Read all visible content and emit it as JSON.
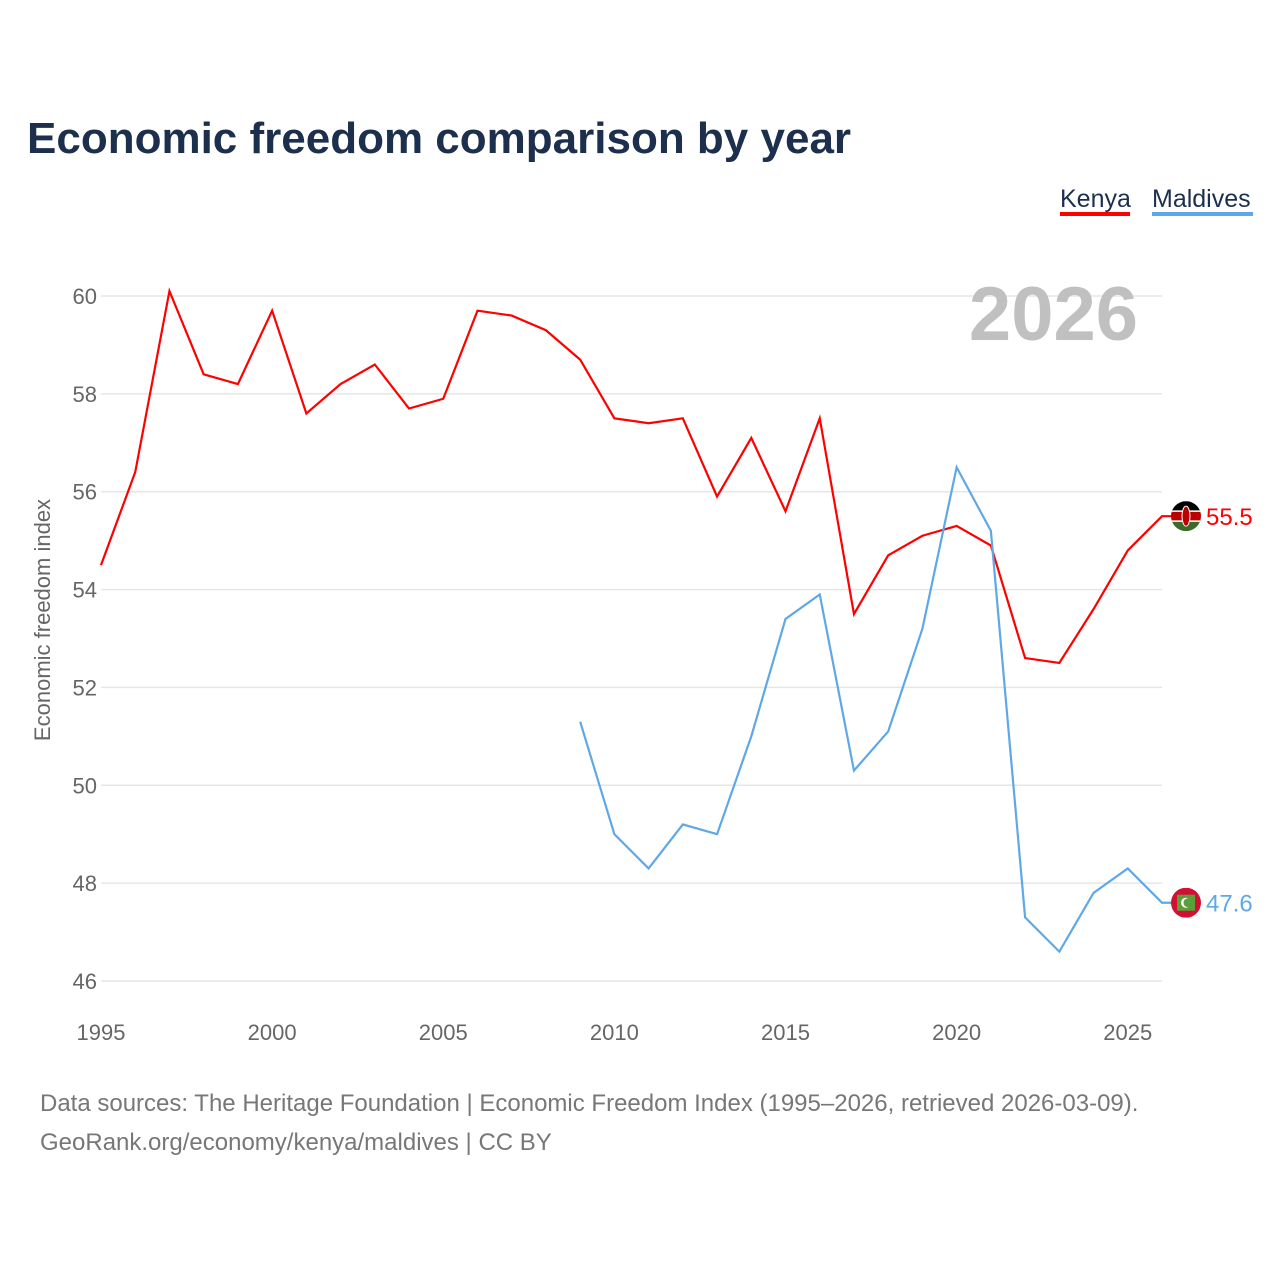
{
  "chart_data": {
    "type": "line",
    "title": "Economic freedom comparison by year",
    "ylabel": "Economic freedom index",
    "xlabel": "",
    "xlim": [
      1995,
      2026
    ],
    "ylim": [
      46,
      60
    ],
    "xticks": [
      "1995",
      "2000",
      "2005",
      "2010",
      "2015",
      "2020",
      "2025"
    ],
    "yticks": [
      "46",
      "48",
      "50",
      "52",
      "54",
      "56",
      "58",
      "60"
    ],
    "year_watermark": "2026",
    "legend": "top-right",
    "grid": true,
    "series": [
      {
        "name": "Kenya",
        "color": "#ff0000",
        "end_label": "55.5",
        "x": [
          1995,
          1996,
          1997,
          1998,
          1999,
          2000,
          2001,
          2002,
          2003,
          2004,
          2005,
          2006,
          2007,
          2008,
          2009,
          2010,
          2011,
          2012,
          2013,
          2014,
          2015,
          2016,
          2017,
          2018,
          2019,
          2020,
          2021,
          2022,
          2023,
          2024,
          2025,
          2026
        ],
        "values": [
          54.5,
          56.4,
          60.1,
          58.4,
          58.2,
          59.7,
          57.6,
          58.2,
          58.6,
          57.7,
          57.9,
          59.7,
          59.6,
          59.3,
          58.7,
          57.5,
          57.4,
          57.5,
          55.9,
          57.1,
          55.6,
          57.5,
          53.5,
          54.7,
          55.1,
          55.3,
          54.9,
          52.6,
          52.5,
          53.6,
          54.8,
          55.5
        ]
      },
      {
        "name": "Maldives",
        "color": "#5fa8e8",
        "end_label": "47.6",
        "x": [
          2009,
          2010,
          2011,
          2012,
          2013,
          2014,
          2015,
          2016,
          2017,
          2018,
          2019,
          2020,
          2021,
          2022,
          2023,
          2024,
          2025,
          2026
        ],
        "values": [
          51.3,
          49.0,
          48.3,
          49.2,
          49.0,
          51.0,
          53.4,
          53.9,
          50.3,
          51.1,
          53.2,
          56.5,
          55.2,
          47.3,
          46.6,
          47.8,
          48.3,
          47.6
        ]
      }
    ]
  },
  "footer": {
    "line1": "Data sources: The Heritage Foundation | Economic Freedom Index (1995–2026, retrieved 2026-03-09).",
    "line2": "GeoRank.org/economy/kenya/maldives | CC BY"
  }
}
